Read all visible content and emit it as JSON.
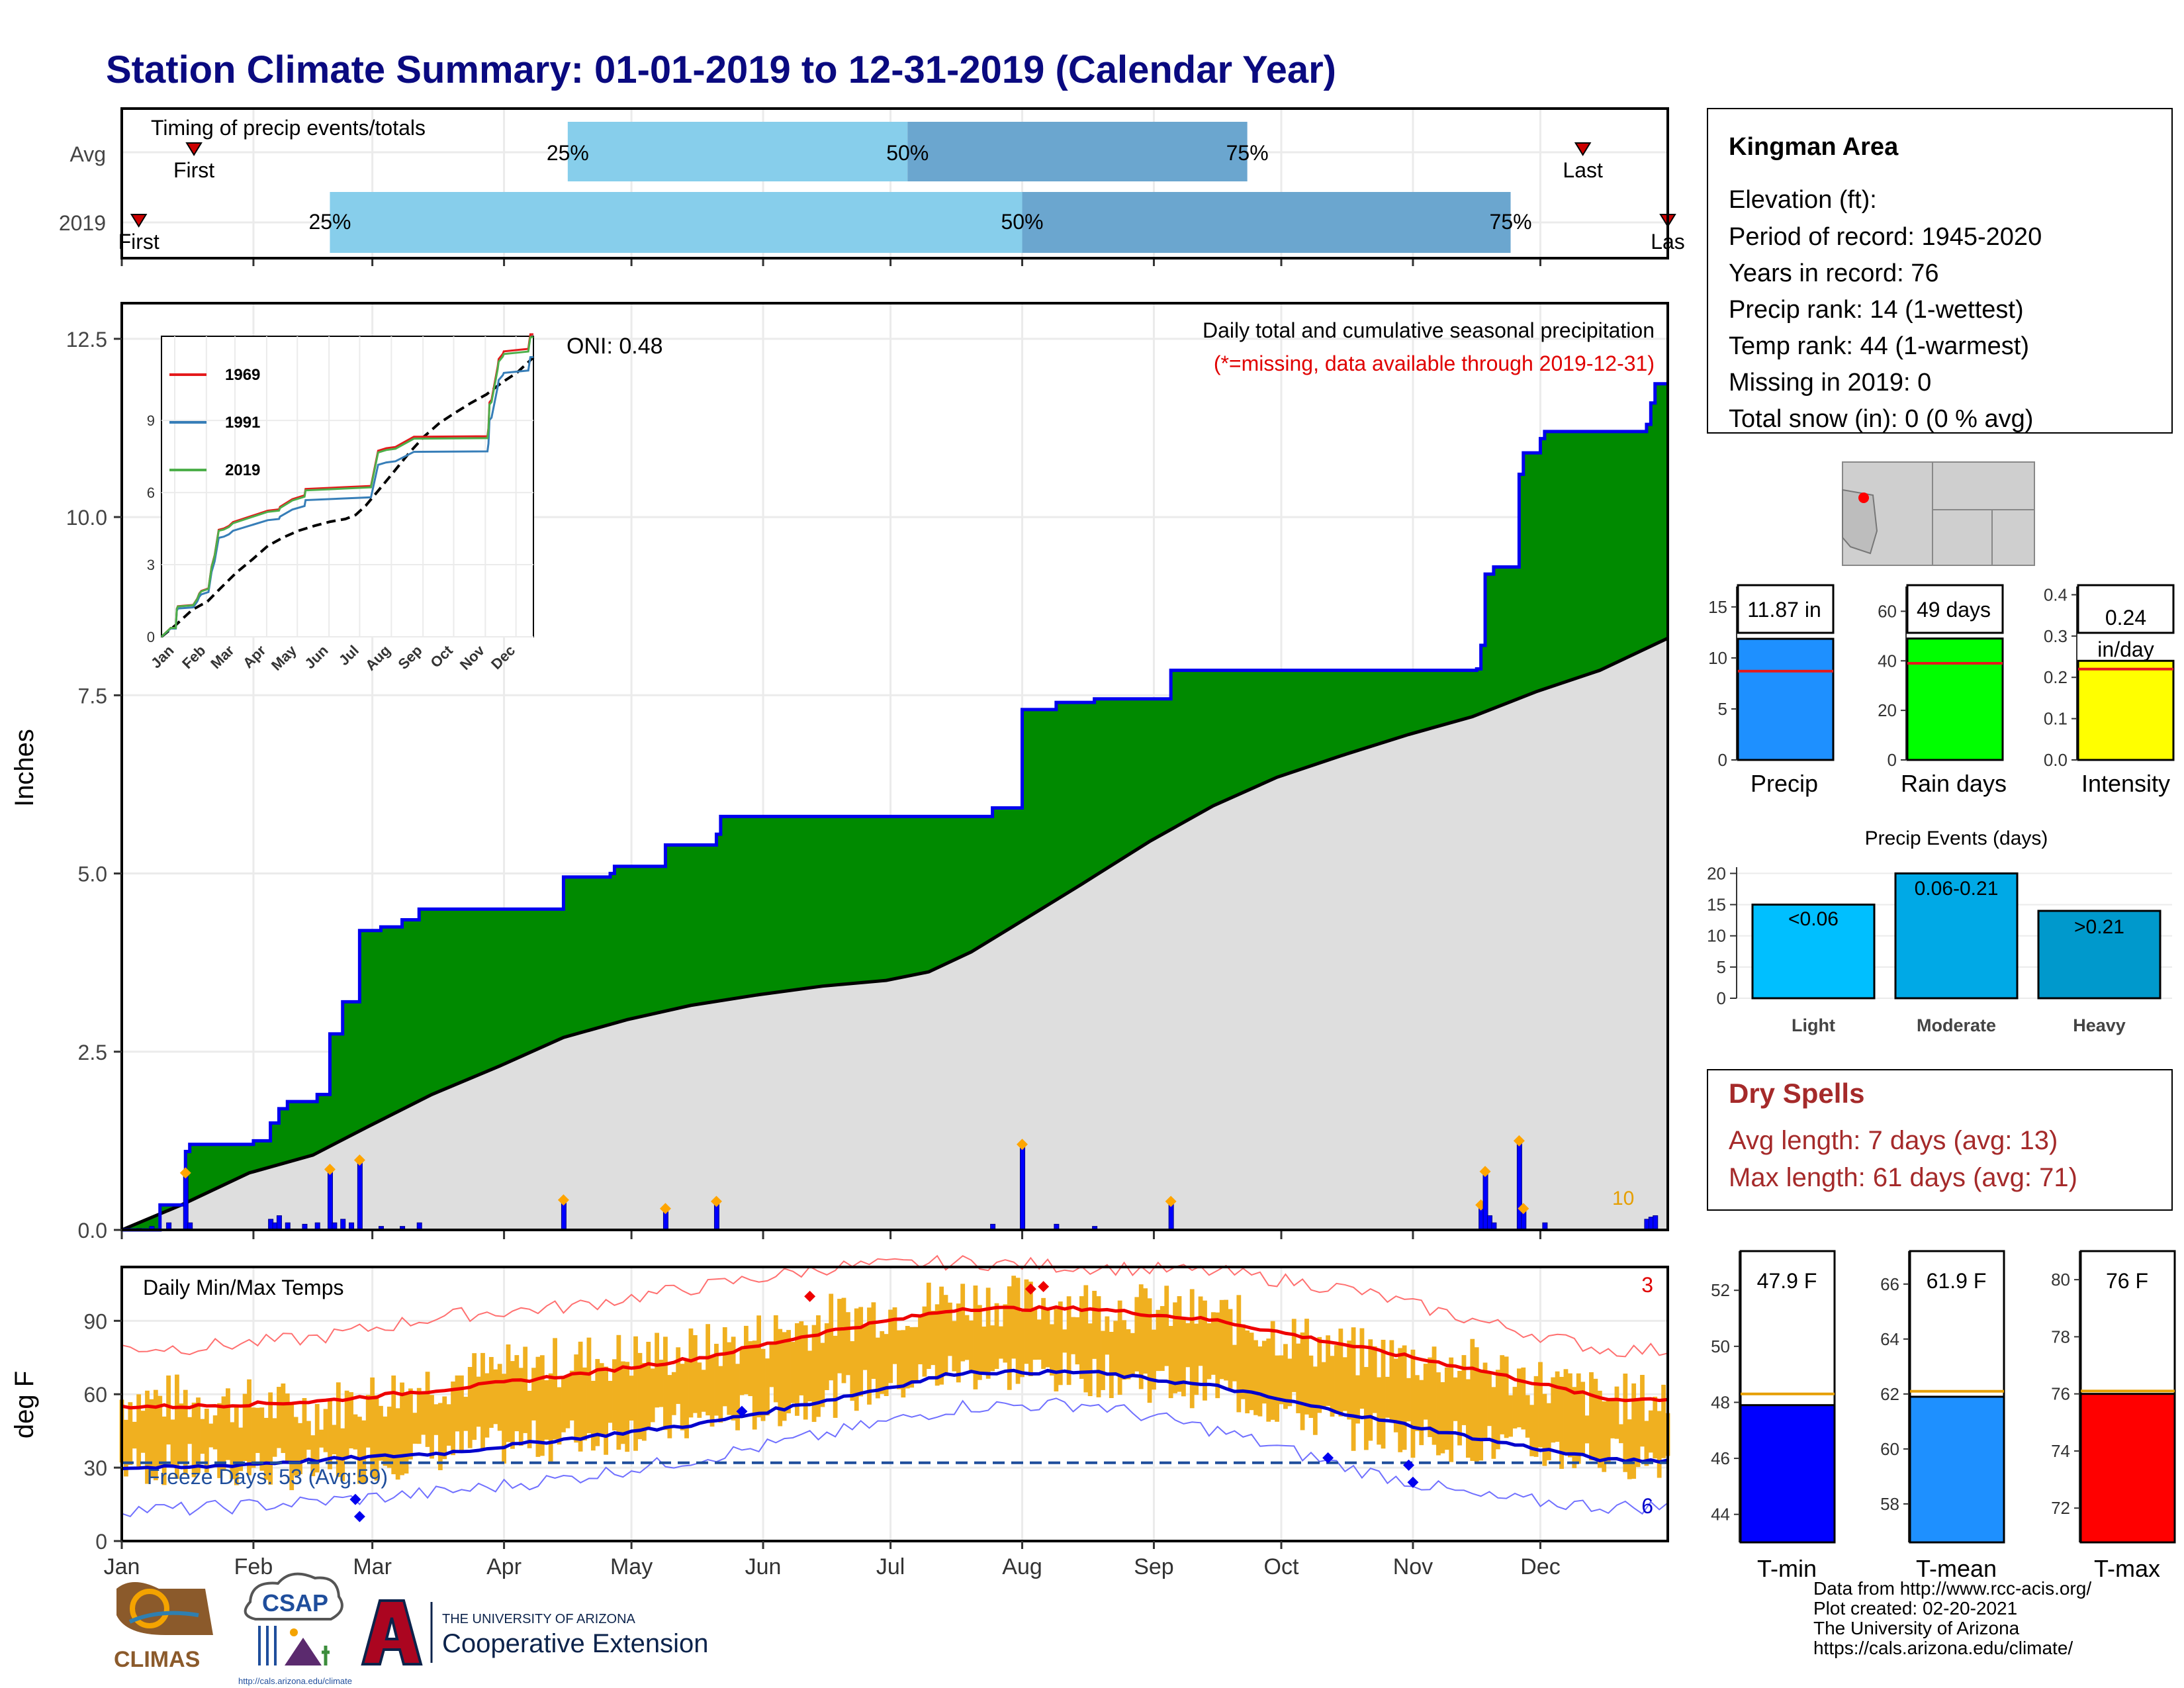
{
  "title": "Station Climate Summary: 01-01-2019 to 12-31-2019 (Calendar Year)",
  "timing": {
    "caption": "Timing of precip events/totals",
    "rows": [
      {
        "label": "Avg",
        "first_label": "First",
        "last_label": "Last",
        "q25": "25%",
        "q50": "50%",
        "q75": "75%",
        "first_date": "2019-01-18",
        "p25_date": "2019-04-16",
        "p50_date": "2019-07-05",
        "p75_date": "2019-09-23",
        "last_date": "2019-12-11"
      },
      {
        "label": "2019",
        "first_label": "First",
        "last_label": "Las",
        "q25": "25%",
        "q50": "50%",
        "q75": "75%",
        "first_date": "2019-01-05",
        "p25_date": "2019-02-19",
        "p50_date": "2019-08-01",
        "p75_date": "2019-11-24",
        "last_date": "2019-12-31"
      }
    ]
  },
  "precip_panel": {
    "caption": "Daily total and cumulative seasonal precipitation",
    "missing_note": "(*=missing, data available through 2019-12-31)",
    "oni_label": "ONI: 0.48",
    "count_label": "10",
    "ylabel": "Inches",
    "yticks": [
      "0.0",
      "2.5",
      "5.0",
      "7.5",
      "10.0",
      "12.5"
    ]
  },
  "inset": {
    "legend": [
      {
        "year": "1969",
        "color": "#e41a1c"
      },
      {
        "year": "1991",
        "color": "#377eb8"
      },
      {
        "year": "2019",
        "color": "#4daf4a"
      }
    ],
    "yticks": [
      "0",
      "3",
      "6",
      "9"
    ],
    "xticks": [
      "Jan",
      "Feb",
      "Mar",
      "Apr",
      "May",
      "Jun",
      "Jul",
      "Aug",
      "Sep",
      "Oct",
      "Nov",
      "Dec"
    ]
  },
  "temp_panel": {
    "caption": "Daily Min/Max Temps",
    "freeze_label": "Freeze Days: 53 (Avg:59)",
    "record_high_count": "3",
    "record_low_count": "6",
    "ylabel": "deg F",
    "yticks": [
      "0",
      "30",
      "60",
      "90"
    ]
  },
  "months": [
    "Jan",
    "Feb",
    "Mar",
    "Apr",
    "May",
    "Jun",
    "Jul",
    "Aug",
    "Sep",
    "Oct",
    "Nov",
    "Dec"
  ],
  "station": {
    "name": "Kingman Area",
    "lines": [
      "Elevation (ft):",
      "Period of record: 1945-2020",
      "Years in record: 76",
      "Precip rank: 14 (1-wettest)",
      "Temp rank: 44 (1-warmest)",
      "Missing in 2019: 0",
      "Total snow (in): 0 (0 % avg)"
    ]
  },
  "stat_bars": [
    {
      "label": "Precip",
      "value_text": "11.87 in",
      "value": 11.87,
      "avg": 8.7,
      "ymax": 17,
      "yticks": [
        "0",
        "5",
        "10",
        "15"
      ],
      "tick_values": [
        0,
        5,
        10,
        15
      ],
      "color": "#1e90ff",
      "avg_color": "#e41a1c"
    },
    {
      "label": "Rain days",
      "value_text": "49 days",
      "value": 49,
      "avg": 39,
      "ymax": 70,
      "yticks": [
        "0",
        "20",
        "40",
        "60"
      ],
      "tick_values": [
        0,
        20,
        40,
        60
      ],
      "color": "#00ff00",
      "avg_color": "#e41a1c"
    },
    {
      "label": "Intensity",
      "value_text": "0.24",
      "value_text2": "in/day",
      "value": 0.24,
      "avg": 0.22,
      "ymax": 0.42,
      "yticks": [
        "0.0",
        "0.1",
        "0.2",
        "0.3",
        "0.4"
      ],
      "tick_values": [
        0,
        0.1,
        0.2,
        0.3,
        0.4
      ],
      "color": "#ffff00",
      "avg_color": "#e41a1c"
    }
  ],
  "precip_events": {
    "title": "Precip Events (days)",
    "yticks": [
      "0",
      "5",
      "10",
      "15",
      "20"
    ],
    "tick_values": [
      0,
      5,
      10,
      15,
      20
    ],
    "ymax": 21,
    "bars": [
      {
        "category": "Light",
        "label": "<0.06",
        "value": 15,
        "color": "#00bfff"
      },
      {
        "category": "Moderate",
        "label": "0.06-0.21",
        "value": 20,
        "color": "#00a9e6"
      },
      {
        "category": "Heavy",
        "label": ">0.21",
        "value": 14,
        "color": "#0099cc"
      }
    ]
  },
  "dry_spells": {
    "title": "Dry Spells",
    "avg_line": "Avg length: 7 days (avg: 13)",
    "max_line": "Max length: 61 days (avg: 71)",
    "color": "#a52a2a"
  },
  "temp_bars": [
    {
      "label": "T-min",
      "value_text": "47.9 F",
      "value": 47.9,
      "avg": 48.3,
      "ymin": 43.0,
      "ymax": 53.4,
      "yticks": [
        "44",
        "46",
        "48",
        "50",
        "52"
      ],
      "tick_values": [
        44,
        46,
        48,
        50,
        52
      ],
      "color": "#0000ff"
    },
    {
      "label": "T-mean",
      "value_text": "61.9 F",
      "value": 61.9,
      "avg": 62.1,
      "ymin": 56.6,
      "ymax": 67.2,
      "yticks": [
        "58",
        "60",
        "62",
        "64",
        "66"
      ],
      "tick_values": [
        58,
        60,
        62,
        64,
        66
      ],
      "color": "#1e90ff"
    },
    {
      "label": "T-max",
      "value_text": "76 F",
      "value": 76.0,
      "avg": 76.1,
      "ymin": 70.8,
      "ymax": 81.0,
      "yticks": [
        "72",
        "74",
        "76",
        "78",
        "80"
      ],
      "tick_values": [
        72,
        74,
        76,
        78,
        80
      ],
      "color": "#ff0000"
    }
  ],
  "credits": [
    "Data from http://www.rcc-acis.org/",
    "Plot created: 02-20-2021",
    "The University of Arizona",
    "https://cals.arizona.edu/climate/"
  ],
  "logos": {
    "climas": "CLIMAS",
    "csap": "CSAP",
    "csap_url": "http://cals.arizona.edu/climate",
    "ua_line1": "THE UNIVERSITY OF ARIZONA",
    "ua_line2": "Cooperative Extension"
  },
  "chart_data": [
    {
      "type": "area",
      "title": "Daily total and cumulative seasonal precipitation",
      "ylabel": "Inches",
      "ylim": [
        0,
        13
      ],
      "x_range": [
        "2019-01-01",
        "2019-12-31"
      ],
      "cumulative_2019": [
        [
          "2019-01-01",
          0
        ],
        [
          "2019-01-10",
          0.35
        ],
        [
          "2019-01-15",
          0.35
        ],
        [
          "2019-01-16",
          1.1
        ],
        [
          "2019-01-17",
          1.2
        ],
        [
          "2019-02-01",
          1.25
        ],
        [
          "2019-02-05",
          1.5
        ],
        [
          "2019-02-07",
          1.7
        ],
        [
          "2019-02-09",
          1.8
        ],
        [
          "2019-02-16",
          1.9
        ],
        [
          "2019-02-19",
          2.75
        ],
        [
          "2019-02-22",
          3.2
        ],
        [
          "2019-02-26",
          4.2
        ],
        [
          "2019-03-03",
          4.25
        ],
        [
          "2019-03-08",
          4.35
        ],
        [
          "2019-03-12",
          4.5
        ],
        [
          "2019-04-15",
          4.95
        ],
        [
          "2019-04-26",
          5.0
        ],
        [
          "2019-04-27",
          5.1
        ],
        [
          "2019-05-09",
          5.4
        ],
        [
          "2019-05-21",
          5.55
        ],
        [
          "2019-05-22",
          5.8
        ],
        [
          "2019-07-25",
          5.92
        ],
        [
          "2019-08-01",
          7.3
        ],
        [
          "2019-08-09",
          7.4
        ],
        [
          "2019-08-18",
          7.45
        ],
        [
          "2019-09-05",
          7.85
        ],
        [
          "2019-11-16",
          7.87
        ],
        [
          "2019-11-17",
          8.2
        ],
        [
          "2019-11-18",
          9.2
        ],
        [
          "2019-11-20",
          9.3
        ],
        [
          "2019-11-26",
          10.6
        ],
        [
          "2019-11-27",
          10.9
        ],
        [
          "2019-12-01",
          11.1
        ],
        [
          "2019-12-02",
          11.2
        ],
        [
          "2019-12-26",
          11.3
        ],
        [
          "2019-12-27",
          11.6
        ],
        [
          "2019-12-28",
          11.87
        ],
        [
          "2019-12-31",
          11.87
        ]
      ],
      "cumulative_avg": [
        [
          "2019-01-01",
          0
        ],
        [
          "2019-01-15",
          0.35
        ],
        [
          "2019-01-31",
          0.8
        ],
        [
          "2019-02-15",
          1.05
        ],
        [
          "2019-02-28",
          1.45
        ],
        [
          "2019-03-15",
          1.9
        ],
        [
          "2019-03-31",
          2.3
        ],
        [
          "2019-04-15",
          2.7
        ],
        [
          "2019-04-30",
          2.95
        ],
        [
          "2019-05-15",
          3.15
        ],
        [
          "2019-05-31",
          3.3
        ],
        [
          "2019-06-15",
          3.42
        ],
        [
          "2019-06-30",
          3.5
        ],
        [
          "2019-07-10",
          3.62
        ],
        [
          "2019-07-20",
          3.9
        ],
        [
          "2019-07-31",
          4.3
        ],
        [
          "2019-08-15",
          4.85
        ],
        [
          "2019-08-31",
          5.45
        ],
        [
          "2019-09-15",
          5.95
        ],
        [
          "2019-09-30",
          6.35
        ],
        [
          "2019-10-15",
          6.65
        ],
        [
          "2019-10-31",
          6.95
        ],
        [
          "2019-11-15",
          7.2
        ],
        [
          "2019-11-30",
          7.55
        ],
        [
          "2019-12-15",
          7.85
        ],
        [
          "2019-12-31",
          8.3
        ]
      ],
      "daily_precip": [
        [
          "2019-01-05",
          0.02
        ],
        [
          "2019-01-08",
          0.05
        ],
        [
          "2019-01-12",
          0.1
        ],
        [
          "2019-01-16",
          0.8
        ],
        [
          "2019-01-17",
          0.1
        ],
        [
          "2019-02-05",
          0.15
        ],
        [
          "2019-02-06",
          0.1
        ],
        [
          "2019-02-07",
          0.2
        ],
        [
          "2019-02-09",
          0.1
        ],
        [
          "2019-02-13",
          0.08
        ],
        [
          "2019-02-16",
          0.1
        ],
        [
          "2019-02-19",
          0.85
        ],
        [
          "2019-02-20",
          0.1
        ],
        [
          "2019-02-22",
          0.15
        ],
        [
          "2019-02-24",
          0.1
        ],
        [
          "2019-02-26",
          0.98
        ],
        [
          "2019-03-03",
          0.05
        ],
        [
          "2019-03-08",
          0.05
        ],
        [
          "2019-03-12",
          0.1
        ],
        [
          "2019-04-15",
          0.42
        ],
        [
          "2019-05-09",
          0.3
        ],
        [
          "2019-05-21",
          0.4
        ],
        [
          "2019-07-25",
          0.08
        ],
        [
          "2019-08-01",
          1.2
        ],
        [
          "2019-08-09",
          0.08
        ],
        [
          "2019-08-18",
          0.05
        ],
        [
          "2019-09-05",
          0.4
        ],
        [
          "2019-11-17",
          0.35
        ],
        [
          "2019-11-18",
          0.82
        ],
        [
          "2019-11-19",
          0.2
        ],
        [
          "2019-11-20",
          0.1
        ],
        [
          "2019-11-26",
          1.25
        ],
        [
          "2019-11-27",
          0.3
        ],
        [
          "2019-12-02",
          0.1
        ],
        [
          "2019-12-26",
          0.15
        ],
        [
          "2019-12-27",
          0.18
        ],
        [
          "2019-12-28",
          0.2
        ]
      ]
    },
    {
      "type": "line",
      "title": "Daily Min/Max Temps",
      "ylabel": "deg F",
      "ylim": [
        0,
        112
      ],
      "freeze_line": 32,
      "avg_max_monthly": [
        55,
        57,
        62,
        68,
        75,
        86,
        95,
        95,
        90,
        80,
        70,
        58
      ],
      "avg_min_monthly": [
        30,
        33,
        36,
        42,
        48,
        58,
        69,
        69,
        63,
        52,
        42,
        33
      ],
      "record_max_monthly": [
        79,
        83,
        92,
        96,
        104,
        112,
        114,
        112,
        110,
        103,
        90,
        78
      ],
      "record_min_monthly": [
        13,
        16,
        20,
        26,
        34,
        44,
        55,
        56,
        45,
        30,
        18,
        14
      ],
      "observed_max_monthly": [
        58,
        54,
        66,
        74,
        78,
        91,
        99,
        97,
        92,
        77,
        72,
        58
      ],
      "observed_min_monthly": [
        31,
        29,
        37,
        42,
        49,
        59,
        70,
        68,
        62,
        46,
        40,
        34
      ]
    },
    {
      "type": "bar",
      "title": "Precip Events (days)",
      "categories": [
        "Light",
        "Moderate",
        "Heavy"
      ],
      "values": [
        15,
        20,
        14
      ]
    }
  ]
}
